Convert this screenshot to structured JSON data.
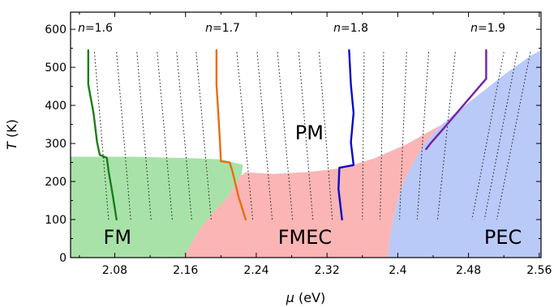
{
  "chart_data": {
    "type": "line",
    "xlabel": "μ (eV)",
    "ylabel": "T (K)",
    "xlim": [
      2.03,
      2.562
    ],
    "ylim": [
      0,
      645
    ],
    "x_ticks": [
      2.08,
      2.16,
      2.24,
      2.32,
      2.4,
      2.48,
      2.56
    ],
    "x_tick_labels": [
      "2.08",
      "2.16",
      "2.24",
      "2.32",
      "2.4",
      "2.48",
      "2.56"
    ],
    "y_ticks": [
      0,
      100,
      200,
      300,
      400,
      500,
      600
    ],
    "y_tick_labels": [
      "0",
      "100",
      "200",
      "300",
      "400",
      "500",
      "600"
    ],
    "regions": [
      {
        "label": "FM",
        "color": "#a8e2a8",
        "label_at": [
          2.083,
          55
        ],
        "boundary": [
          [
            2.03,
            0
          ],
          [
            2.03,
            265
          ],
          [
            2.1,
            265
          ],
          [
            2.17,
            261
          ],
          [
            2.2,
            258
          ],
          [
            2.225,
            244
          ],
          [
            2.223,
            216
          ],
          [
            2.207,
            157
          ],
          [
            2.19,
            115
          ],
          [
            2.176,
            75
          ],
          [
            2.165,
            30
          ],
          [
            2.158,
            0
          ]
        ]
      },
      {
        "label": "FMEC",
        "color": "#fbb5b5",
        "label_at": [
          2.295,
          55
        ],
        "boundary": [
          [
            2.158,
            0
          ],
          [
            2.165,
            30
          ],
          [
            2.176,
            75
          ],
          [
            2.19,
            115
          ],
          [
            2.207,
            157
          ],
          [
            2.223,
            216
          ],
          [
            2.228,
            224
          ],
          [
            2.26,
            220
          ],
          [
            2.3,
            225
          ],
          [
            2.34,
            236
          ],
          [
            2.375,
            262
          ],
          [
            2.41,
            298
          ],
          [
            2.45,
            350
          ],
          [
            2.43,
            300
          ],
          [
            2.418,
            250
          ],
          [
            2.407,
            200
          ],
          [
            2.4,
            150
          ],
          [
            2.395,
            100
          ],
          [
            2.391,
            50
          ],
          [
            2.389,
            0
          ]
        ]
      },
      {
        "label": "PEC",
        "color": "#b9c9f8",
        "label_at": [
          2.519,
          55
        ],
        "boundary": [
          [
            2.389,
            0
          ],
          [
            2.391,
            50
          ],
          [
            2.395,
            100
          ],
          [
            2.4,
            150
          ],
          [
            2.407,
            200
          ],
          [
            2.418,
            250
          ],
          [
            2.43,
            300
          ],
          [
            2.45,
            350
          ],
          [
            2.465,
            380
          ],
          [
            2.49,
            425
          ],
          [
            2.52,
            480
          ],
          [
            2.55,
            530
          ],
          [
            2.562,
            545
          ],
          [
            2.562,
            0
          ]
        ]
      },
      {
        "label": "PM",
        "color": "#ffffff",
        "label_at": [
          2.3,
          330
        ],
        "boundary": []
      }
    ],
    "series": [
      {
        "name": "n=1.6",
        "color": "#1b7d1b",
        "label_at": [
          2.058,
          605
        ],
        "points": [
          [
            2.05,
            545
          ],
          [
            2.05,
            455
          ],
          [
            2.056,
            380
          ],
          [
            2.06,
            303
          ],
          [
            2.063,
            270
          ],
          [
            2.071,
            262
          ],
          [
            2.073,
            227
          ],
          [
            2.078,
            160
          ],
          [
            2.082,
            100
          ]
        ]
      },
      {
        "name": "n=1.7",
        "color": "#e86d13",
        "label_at": [
          2.202,
          605
        ],
        "points": [
          [
            2.195,
            545
          ],
          [
            2.195,
            455
          ],
          [
            2.197,
            380
          ],
          [
            2.199,
            303
          ],
          [
            2.2,
            253
          ],
          [
            2.21,
            250
          ],
          [
            2.213,
            227
          ],
          [
            2.22,
            160
          ],
          [
            2.228,
            100
          ]
        ]
      },
      {
        "name": "n=1.8",
        "color": "#0a0ac8",
        "label_at": [
          2.347,
          605
        ],
        "points": [
          [
            2.345,
            545
          ],
          [
            2.347,
            455
          ],
          [
            2.35,
            380
          ],
          [
            2.347,
            303
          ],
          [
            2.35,
            243
          ],
          [
            2.334,
            236
          ],
          [
            2.333,
            180
          ],
          [
            2.335,
            140
          ],
          [
            2.337,
            100
          ]
        ]
      },
      {
        "name": "n=1.9",
        "color": "#7a1ea8",
        "label_at": [
          2.502,
          605
        ],
        "points": [
          [
            2.5,
            545
          ],
          [
            2.5,
            470
          ],
          [
            2.474,
            400
          ],
          [
            2.452,
            340
          ],
          [
            2.437,
            300
          ],
          [
            2.432,
            285
          ]
        ]
      }
    ],
    "dotted_isolines": [
      {
        "x0": 2.057,
        "x1": 2.073,
        "y0": 540,
        "y1": 100
      },
      {
        "x0": 2.082,
        "x1": 2.098,
        "y0": 540,
        "y1": 100
      },
      {
        "x0": 2.105,
        "x1": 2.121,
        "y0": 540,
        "y1": 100
      },
      {
        "x0": 2.128,
        "x1": 2.145,
        "y0": 540,
        "y1": 100
      },
      {
        "x0": 2.15,
        "x1": 2.167,
        "y0": 540,
        "y1": 100
      },
      {
        "x0": 2.172,
        "x1": 2.189,
        "y0": 540,
        "y1": 100
      },
      {
        "x0": 2.218,
        "x1": 2.236,
        "y0": 540,
        "y1": 100
      },
      {
        "x0": 2.241,
        "x1": 2.258,
        "y0": 540,
        "y1": 100
      },
      {
        "x0": 2.264,
        "x1": 2.281,
        "y0": 540,
        "y1": 100
      },
      {
        "x0": 2.288,
        "x1": 2.304,
        "y0": 540,
        "y1": 100
      },
      {
        "x0": 2.311,
        "x1": 2.326,
        "y0": 540,
        "y1": 100
      },
      {
        "x0": 2.362,
        "x1": 2.36,
        "y0": 540,
        "y1": 100
      },
      {
        "x0": 2.384,
        "x1": 2.38,
        "y0": 540,
        "y1": 100
      },
      {
        "x0": 2.41,
        "x1": 2.402,
        "y0": 540,
        "y1": 100
      },
      {
        "x0": 2.435,
        "x1": 2.422,
        "y0": 540,
        "y1": 100
      },
      {
        "x0": 2.465,
        "x1": 2.445,
        "y0": 540,
        "y1": 100
      },
      {
        "x0": 2.52,
        "x1": 2.484,
        "y0": 540,
        "y1": 100
      },
      {
        "x0": 2.535,
        "x1": 2.498,
        "y0": 540,
        "y1": 100
      },
      {
        "x0": 2.55,
        "x1": 2.512,
        "y0": 540,
        "y1": 100
      }
    ]
  }
}
